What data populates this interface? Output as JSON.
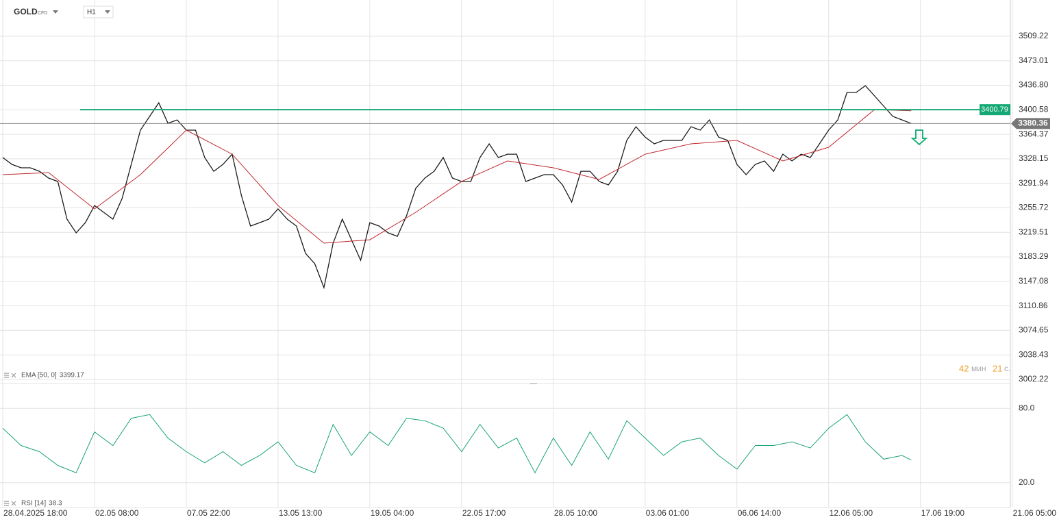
{
  "header": {
    "symbol": "GOLD",
    "instrument_type": "CFD",
    "timeframe": "H1"
  },
  "timer": {
    "minutes": 42,
    "minutes_unit": "мин",
    "seconds": 21,
    "seconds_unit": "с."
  },
  "chart_data": [
    {
      "type": "line",
      "xlim": [
        -0.03,
        10.98
      ],
      "xticks": [
        {
          "value": 0,
          "label": "28.04.2025 18:00"
        },
        {
          "value": 1,
          "label": "02.05 08:00"
        },
        {
          "value": 2,
          "label": "07.05 22:00"
        },
        {
          "value": 3,
          "label": "13.05 13:00"
        },
        {
          "value": 4,
          "label": "19.05 04:00"
        },
        {
          "value": 5,
          "label": "22.05 17:00"
        },
        {
          "value": 6,
          "label": "28.05 10:00"
        },
        {
          "value": 7,
          "label": "03.06 01:00"
        },
        {
          "value": 8,
          "label": "06.06 14:00"
        },
        {
          "value": 9,
          "label": "12.06 05:00"
        },
        {
          "value": 10,
          "label": "17.06 19:00"
        },
        {
          "value": 11,
          "label": "21.06 05:00"
        }
      ],
      "ylim": [
        2994.12,
        3562.85
      ],
      "yticks": [
        3509.22,
        3473.01,
        {
          "value": 3436.8,
          "label": "3436.80"
        },
        3400.58,
        3364.37,
        3328.15,
        3291.94,
        3255.72,
        3219.51,
        3183.29,
        3147.08,
        3110.86,
        3074.65,
        3038.43,
        3002.22
      ],
      "grid": true,
      "level_line": {
        "value": 3400.79,
        "color": "#14a874"
      },
      "last_price": 3380.36,
      "series": [
        {
          "color": "#1a1a1a",
          "x": [
            0,
            0.1,
            0.2,
            0.3,
            0.4,
            0.5,
            0.6,
            0.7,
            0.8,
            0.9,
            1,
            1.1,
            1.2,
            1.3,
            1.4,
            1.5,
            1.6,
            1.7,
            1.8,
            1.9,
            2,
            2.1,
            2.2,
            2.3,
            2.4,
            2.5,
            2.6,
            2.7,
            2.8,
            2.9,
            3,
            3.1,
            3.2,
            3.3,
            3.4,
            3.5,
            3.6,
            3.7,
            3.8,
            3.9,
            4,
            4.1,
            4.2,
            4.3,
            4.4,
            4.5,
            4.6,
            4.7,
            4.8,
            4.9,
            5,
            5.1,
            5.2,
            5.3,
            5.4,
            5.5,
            5.6,
            5.7,
            5.8,
            5.9,
            6,
            6.1,
            6.2,
            6.3,
            6.4,
            6.5,
            6.6,
            6.7,
            6.8,
            6.9,
            7,
            7.1,
            7.2,
            7.3,
            7.4,
            7.5,
            7.6,
            7.7,
            7.8,
            7.9,
            8,
            8.1,
            8.2,
            8.3,
            8.4,
            8.5,
            8.6,
            8.7,
            8.8,
            8.9,
            9,
            9.1,
            9.2,
            9.3,
            9.4,
            9.5,
            9.6,
            9.7,
            9.8,
            9.9
          ],
          "values": [
            3330.1,
            3320.0,
            3314.9,
            3314.9,
            3309.8,
            3299.7,
            3294.7,
            3239.0,
            3218.8,
            3233.9,
            3259.2,
            3249.1,
            3239.0,
            3269.4,
            3320.0,
            3370.6,
            3390.8,
            3411.0,
            3380.7,
            3385.7,
            3370.6,
            3370.6,
            3330.1,
            3309.8,
            3320.0,
            3335.1,
            3274.4,
            3228.9,
            3233.9,
            3239.0,
            3254.2,
            3239.0,
            3228.9,
            3188.4,
            3173.2,
            3137.8,
            3203.6,
            3239.0,
            3208.6,
            3178.3,
            3233.9,
            3228.9,
            3218.8,
            3213.7,
            3244.1,
            3284.5,
            3299.7,
            3309.8,
            3330.1,
            3299.7,
            3294.7,
            3294.7,
            3330.1,
            3350.3,
            3330.1,
            3335.1,
            3335.1,
            3294.7,
            3299.7,
            3304.8,
            3304.8,
            3289.6,
            3264.3,
            3309.8,
            3309.8,
            3294.7,
            3289.6,
            3309.8,
            3355.4,
            3375.6,
            3360.4,
            3350.3,
            3355.4,
            3355.4,
            3355.4,
            3375.6,
            3370.6,
            3385.7,
            3360.4,
            3355.4,
            3320.0,
            3304.8,
            3320.0,
            3325.0,
            3309.8,
            3335.1,
            3325.0,
            3335.1,
            3330.1,
            3350.3,
            3370.6,
            3385.7,
            3426.2,
            3426.2,
            3436.3,
            3421.2,
            3406.0,
            3390.8,
            3385.7,
            3380.36
          ]
        },
        {
          "name": "EMA [50, 0]",
          "legend_value": 3399.17,
          "color": "#c0282d",
          "x": [
            0,
            0.5,
            1,
            1.5,
            2,
            2.5,
            3,
            3.5,
            4,
            4.5,
            5,
            5.5,
            6,
            6.5,
            7,
            7.5,
            8,
            8.5,
            9,
            9.5,
            9.9
          ],
          "values": [
            3304.8,
            3307.8,
            3254.2,
            3304.8,
            3370.6,
            3335.1,
            3259.2,
            3203.6,
            3208.6,
            3249.1,
            3294.7,
            3325.0,
            3314.9,
            3297.7,
            3335.1,
            3350.3,
            3355.4,
            3325.0,
            3345.3,
            3400.9,
            3399.17
          ]
        }
      ]
    },
    {
      "type": "line",
      "ylim": [
        0,
        100
      ],
      "yticks": [
        {
          "value": 80,
          "label": "80.0"
        },
        {
          "value": 20,
          "label": "20.0"
        }
      ],
      "grid": true,
      "series": [
        {
          "name": "RSI [14]",
          "legend_value": 38.3,
          "color": "#1aa37a",
          "x": [
            0,
            0.2,
            0.4,
            0.6,
            0.8,
            1,
            1.2,
            1.4,
            1.6,
            1.8,
            2,
            2.2,
            2.4,
            2.6,
            2.8,
            3,
            3.2,
            3.4,
            3.6,
            3.8,
            4,
            4.2,
            4.4,
            4.6,
            4.8,
            5,
            5.2,
            5.4,
            5.6,
            5.8,
            6,
            6.2,
            6.4,
            6.6,
            6.8,
            7,
            7.2,
            7.4,
            7.6,
            7.8,
            8,
            8.2,
            8.4,
            8.6,
            8.8,
            9,
            9.2,
            9.4,
            9.6,
            9.8,
            9.9
          ],
          "values": [
            64,
            50,
            45,
            34,
            28,
            61,
            50,
            72,
            75,
            56,
            45,
            36,
            45,
            34,
            42,
            53,
            34,
            28,
            67,
            42,
            61,
            50,
            72,
            70,
            64,
            45,
            67,
            48,
            56,
            28,
            56,
            34,
            61,
            39,
            70,
            56,
            42,
            53,
            56,
            42,
            31,
            50,
            50,
            53,
            48,
            64,
            75,
            53,
            39,
            42,
            38.3
          ]
        }
      ]
    }
  ]
}
